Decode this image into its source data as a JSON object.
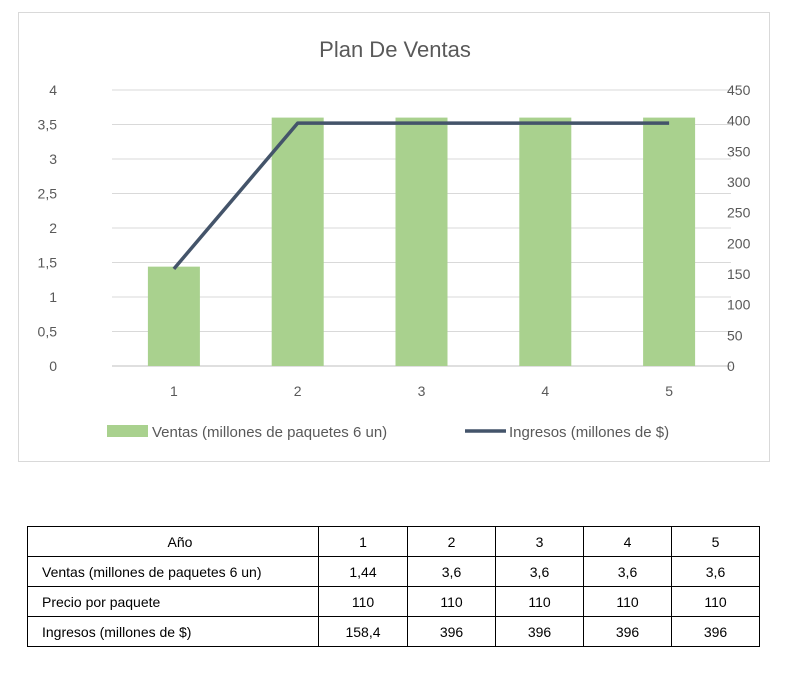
{
  "chart_data": {
    "type": "bar",
    "title": "Plan De Ventas",
    "categories": [
      "1",
      "2",
      "3",
      "4",
      "5"
    ],
    "series": [
      {
        "name": "Ventas (millones de paquetes 6 un)",
        "type": "bar",
        "axis": "left",
        "values": [
          1.44,
          3.6,
          3.6,
          3.6,
          3.6
        ],
        "color": "#a9d18e"
      },
      {
        "name": "Ingresos (millones de $)",
        "type": "line",
        "axis": "right",
        "values": [
          158.4,
          396,
          396,
          396,
          396
        ],
        "color": "#44546a"
      }
    ],
    "left_axis": {
      "ylim": [
        0,
        4
      ],
      "ticks": [
        "0",
        "0,5",
        "1",
        "1,5",
        "2",
        "2,5",
        "3",
        "3,5",
        "4"
      ]
    },
    "right_axis": {
      "ylim": [
        0,
        450
      ],
      "ticks": [
        "0",
        "50",
        "100",
        "150",
        "200",
        "250",
        "300",
        "350",
        "400",
        "450"
      ]
    },
    "grid": true,
    "legend_position": "bottom"
  },
  "table": {
    "header": [
      "Año",
      "1",
      "2",
      "3",
      "4",
      "5"
    ],
    "rows": [
      {
        "label": "Ventas (millones de paquetes 6 un)",
        "values": [
          "1,44",
          "3,6",
          "3,6",
          "3,6",
          "3,6"
        ]
      },
      {
        "label": "Precio por paquete",
        "values": [
          "110",
          "110",
          "110",
          "110",
          "110"
        ]
      },
      {
        "label": "Ingresos (millones de $)",
        "values": [
          "158,4",
          "396",
          "396",
          "396",
          "396"
        ]
      }
    ]
  }
}
